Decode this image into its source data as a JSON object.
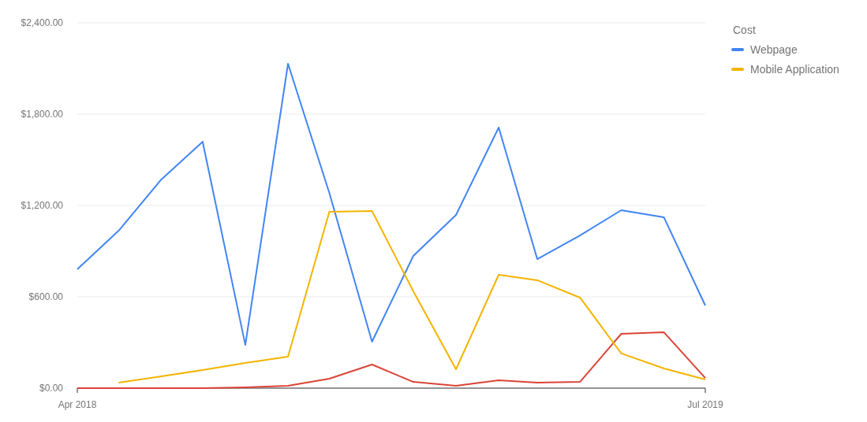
{
  "chart_data": {
    "type": "line",
    "legend_title": "Cost",
    "legend": "top right",
    "grid": "y",
    "x": [
      "2018-04",
      "2018-05",
      "2018-06",
      "2018-07",
      "2018-08",
      "2018-09",
      "2018-10",
      "2018-11",
      "2018-12",
      "2019-01",
      "2019-02",
      "2019-03",
      "2019-04",
      "2019-05",
      "2019-06",
      "2019-07"
    ],
    "xlim": [
      "2018-04",
      "2019-07"
    ],
    "xticks": [
      {
        "value": "2018-04",
        "label": "Apr 2018"
      },
      {
        "value": "2019-07",
        "label": "Jul 2019"
      }
    ],
    "ylim": [
      0,
      2400
    ],
    "yticks": [
      {
        "value": 0,
        "label": "$0.00"
      },
      {
        "value": 600,
        "label": "$600.00"
      },
      {
        "value": 1200,
        "label": "$1,200.00"
      },
      {
        "value": 1800,
        "label": "$1,800.00"
      },
      {
        "value": 2400,
        "label": "$2,400.00"
      }
    ],
    "series": [
      {
        "name": "Webpage",
        "color": "#4285f4",
        "values": [
          781,
          1034,
          1371,
          1619,
          284,
          2131,
          1283,
          305,
          869,
          1138,
          1712,
          848,
          1003,
          1169,
          1122,
          543
        ]
      },
      {
        "color": "#db4437",
        "values": [
          0,
          0,
          0,
          0,
          5,
          16,
          62,
          155,
          41,
          16,
          52,
          36,
          41,
          357,
          367,
          67
        ]
      },
      {
        "name": "Mobile Application",
        "color": "#f4b400",
        "values": [
          null,
          36,
          78,
          119,
          166,
          207,
          1159,
          1164,
          636,
          124,
          745,
          709,
          595,
          228,
          129,
          57
        ]
      }
    ]
  }
}
